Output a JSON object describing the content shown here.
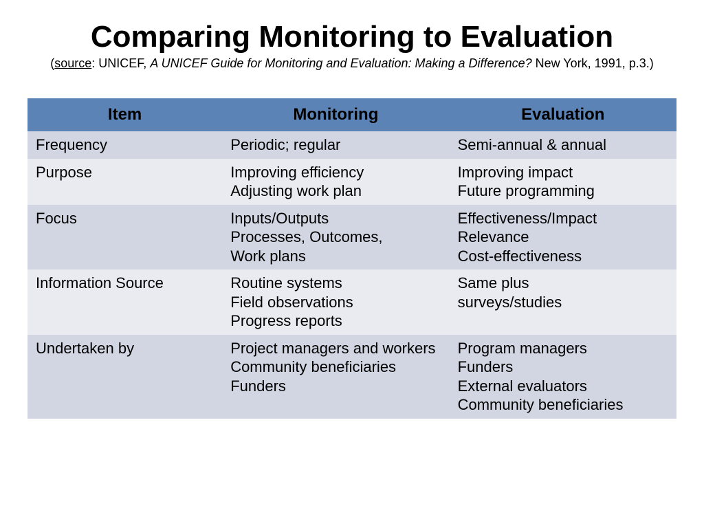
{
  "title": "Comparing Monitoring to Evaluation",
  "subtitle": {
    "label": "source",
    "org": "UNICEF,",
    "italic": "A UNICEF Guide for Monitoring and Evaluation: Making a Difference?",
    "tail": "New York, 1991, p.3.)"
  },
  "table": {
    "type": "table",
    "header_bg": "#5b83b6",
    "row_odd_bg": "#d2d6e2",
    "row_even_bg": "#e9ebf1",
    "title_fontsize": 44,
    "subtitle_fontsize": 18,
    "header_fontsize": 24,
    "cell_fontsize": 22,
    "text_color": "#000000",
    "col_widths": [
      "30%",
      "35%",
      "35%"
    ],
    "columns": [
      "Item",
      "Monitoring",
      "Evaluation"
    ],
    "rows": [
      [
        "Frequency",
        "Periodic; regular",
        "Semi-annual & annual"
      ],
      [
        "Purpose",
        "Improving efficiency\nAdjusting work plan",
        "Improving impact\nFuture programming"
      ],
      [
        "Focus",
        "Inputs/Outputs\nProcesses, Outcomes,\nWork plans",
        "Effectiveness/Impact\nRelevance\nCost-effectiveness"
      ],
      [
        "Information Source",
        "Routine systems\nField observations\nProgress reports",
        "Same plus\nsurveys/studies"
      ],
      [
        "Undertaken by",
        "Project managers and workers\nCommunity beneficiaries\nFunders",
        "Program managers\nFunders\nExternal evaluators\nCommunity beneficiaries"
      ]
    ]
  }
}
